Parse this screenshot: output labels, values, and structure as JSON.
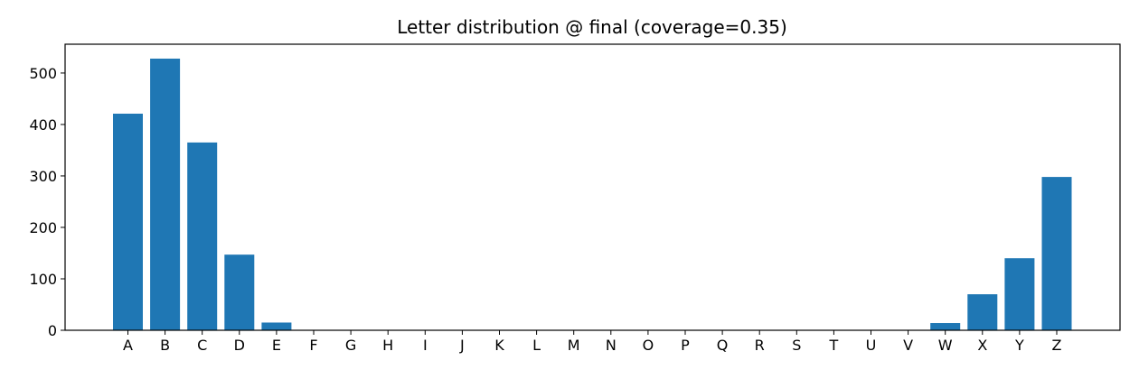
{
  "chart_data": {
    "type": "bar",
    "title": "Letter distribution @ final (coverage=0.35)",
    "xlabel": "",
    "ylabel": "",
    "categories": [
      "A",
      "B",
      "C",
      "D",
      "E",
      "F",
      "G",
      "H",
      "I",
      "J",
      "K",
      "L",
      "M",
      "N",
      "O",
      "P",
      "Q",
      "R",
      "S",
      "T",
      "U",
      "V",
      "W",
      "X",
      "Y",
      "Z"
    ],
    "values": [
      421,
      528,
      365,
      147,
      15,
      0,
      0,
      0,
      0,
      0,
      0,
      0,
      0,
      0,
      0,
      0,
      0,
      0,
      0,
      0,
      0,
      0,
      14,
      70,
      140,
      298
    ],
    "ylim": [
      0,
      556
    ],
    "yticks": [
      0,
      100,
      200,
      300,
      400,
      500
    ],
    "grid": false,
    "bar_color": "#1f77b4"
  }
}
